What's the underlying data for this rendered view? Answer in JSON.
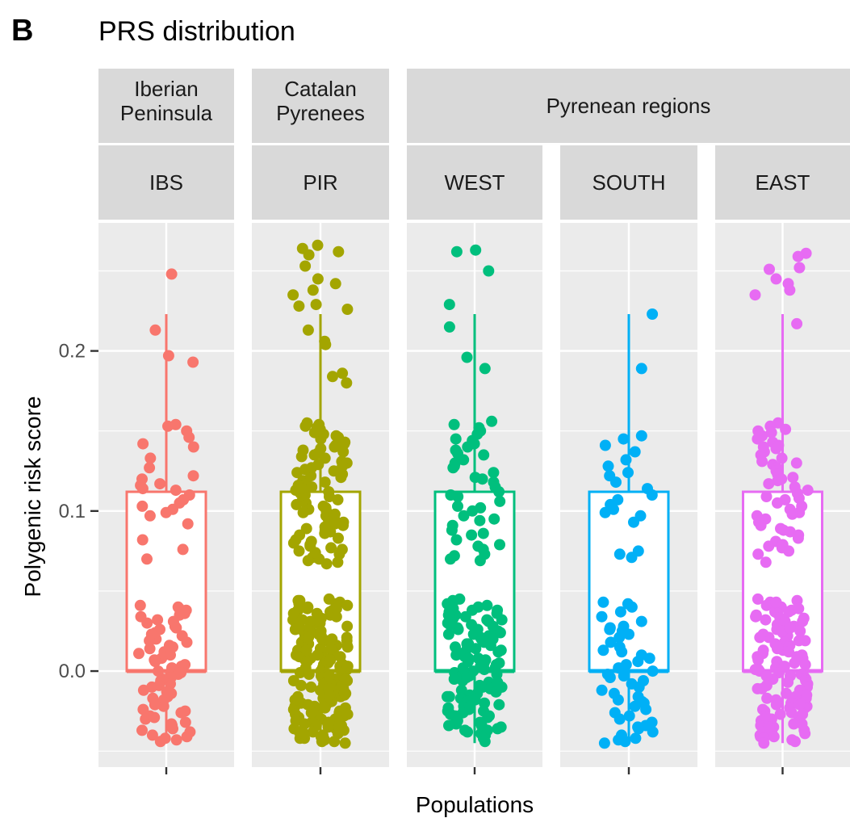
{
  "tag": "B",
  "chart_data": {
    "type": "boxplot-jitter",
    "title": "PRS distribution",
    "xlabel": "Populations",
    "ylabel": "Polygenic risk score",
    "ylim": [
      -0.06,
      0.28
    ],
    "yticks": [
      {
        "value": 0.0,
        "label": "0.0"
      },
      {
        "value": 0.1,
        "label": "0.1"
      },
      {
        "value": 0.2,
        "label": "0.2"
      }
    ],
    "grid": true,
    "groups": [
      {
        "label": "Iberian\nPeninsula",
        "panels": [
          0
        ]
      },
      {
        "label": "Catalan\nPyrenees",
        "panels": [
          1
        ]
      },
      {
        "label": "Pyrenean regions",
        "panels": [
          2,
          3,
          4
        ]
      }
    ],
    "panels": [
      {
        "name": "IBS",
        "color": "#F8766D",
        "box": {
          "q1": 0.0,
          "median": 0.0,
          "q3": 0.112,
          "whisker_low": -0.045,
          "whisker_high": 0.223
        },
        "points": [
          0.248,
          0.213,
          0.197,
          0.193,
          0.154,
          0.153,
          0.15,
          0.146,
          0.142,
          0.14,
          0.133,
          0.127,
          0.122,
          0.12,
          0.117,
          0.116,
          0.114,
          0.113,
          0.11,
          0.107,
          0.105,
          0.103,
          0.101,
          0.099,
          0.097,
          0.092,
          0.082,
          0.076,
          0.07,
          0.041,
          0.04,
          0.039,
          0.038,
          0.037,
          0.036,
          0.035,
          0.034,
          0.032,
          0.03,
          0.028,
          0.026,
          0.024,
          0.022,
          0.02,
          0.018,
          0.016,
          0.014,
          0.012,
          0.01,
          0.008,
          0.006,
          0.004,
          0.002,
          0.0,
          -0.002,
          -0.004,
          -0.006,
          -0.008,
          -0.01,
          -0.012,
          -0.014,
          -0.016,
          -0.018,
          -0.02,
          -0.022,
          -0.024,
          -0.026,
          -0.028,
          -0.03,
          -0.032,
          -0.034,
          -0.036,
          -0.038,
          -0.04,
          -0.042,
          -0.044,
          0.031,
          0.027,
          0.023,
          0.019,
          0.015,
          0.011,
          0.007,
          0.003,
          -0.001,
          -0.005,
          -0.009,
          -0.013,
          -0.017,
          -0.021,
          -0.025,
          -0.029,
          -0.033,
          -0.037,
          -0.041,
          -0.043
        ]
      },
      {
        "name": "PIR",
        "color": "#A3A500",
        "box": {
          "q1": 0.0,
          "median": 0.0,
          "q3": 0.112,
          "whisker_low": -0.045,
          "whisker_high": 0.223
        },
        "points": [
          0.266,
          0.264,
          0.262,
          0.26,
          0.253,
          0.245,
          0.242,
          0.238,
          0.235,
          0.229,
          0.228,
          0.226,
          0.213,
          0.206,
          0.204,
          0.186,
          0.184,
          0.18,
          0.155,
          0.153,
          0.151,
          0.149,
          0.147,
          0.145,
          0.143,
          0.141,
          0.139,
          0.137,
          0.135,
          0.133,
          0.131,
          0.129,
          0.127,
          0.125,
          0.123,
          0.121,
          0.119,
          0.117,
          0.115,
          0.113,
          0.111,
          0.109,
          0.107,
          0.105,
          0.103,
          0.101,
          0.099,
          0.097,
          0.095,
          0.093,
          0.091,
          0.089,
          0.087,
          0.085,
          0.083,
          0.081,
          0.079,
          0.077,
          0.075,
          0.073,
          0.071,
          0.069,
          0.067,
          0.154,
          0.148,
          0.142,
          0.136,
          0.13,
          0.124,
          0.118,
          0.112,
          0.106,
          0.1,
          0.094,
          0.088,
          0.082,
          0.076,
          0.07,
          0.152,
          0.146,
          0.14,
          0.134,
          0.128,
          0.122,
          0.116,
          0.11,
          0.104,
          0.098,
          0.092,
          0.086,
          0.08,
          0.074,
          0.068,
          0.15,
          0.138,
          0.126,
          0.114,
          0.102,
          0.09,
          0.078,
          0.045,
          0.044,
          0.043,
          0.042,
          0.041,
          0.04,
          0.039,
          0.038,
          0.037,
          0.036,
          0.035,
          0.034,
          0.033,
          0.032,
          0.031,
          0.03,
          0.029,
          0.028,
          0.027,
          0.026,
          0.025,
          0.024,
          0.023,
          0.022,
          0.021,
          0.02,
          0.019,
          0.018,
          0.017,
          0.016,
          0.015,
          0.014,
          0.013,
          0.012,
          0.011,
          0.01,
          0.009,
          0.008,
          0.007,
          0.006,
          0.005,
          0.004,
          0.003,
          0.002,
          0.001,
          0.0,
          -0.001,
          -0.002,
          -0.003,
          -0.004,
          -0.005,
          -0.006,
          -0.007,
          -0.008,
          -0.009,
          -0.01,
          -0.011,
          -0.012,
          -0.013,
          -0.014,
          -0.015,
          -0.016,
          -0.017,
          -0.018,
          -0.019,
          -0.02,
          -0.021,
          -0.022,
          -0.023,
          -0.024,
          -0.025,
          -0.026,
          -0.027,
          -0.028,
          -0.029,
          -0.03,
          -0.031,
          -0.032,
          -0.033,
          -0.034,
          -0.035,
          -0.036,
          -0.037,
          -0.038,
          -0.039,
          -0.04,
          -0.041,
          -0.042,
          -0.043,
          -0.044,
          0.044,
          0.04,
          0.036,
          0.032,
          0.028,
          0.024,
          0.02,
          0.016,
          0.012,
          0.008,
          0.004,
          0.0,
          -0.004,
          -0.008,
          -0.012,
          -0.016,
          -0.02,
          -0.024,
          -0.028,
          -0.032,
          -0.036,
          -0.04,
          -0.044,
          0.042,
          0.038,
          0.034,
          0.03,
          0.026,
          0.022,
          0.018,
          0.014,
          0.01,
          0.006,
          0.002,
          -0.002,
          -0.006,
          -0.01,
          -0.014,
          -0.018,
          -0.022,
          -0.026,
          -0.03,
          -0.034,
          -0.038,
          -0.042,
          0.043,
          0.037,
          0.031,
          0.025,
          0.019,
          0.013,
          0.007,
          0.001,
          -0.005,
          -0.011,
          -0.017,
          -0.023,
          -0.029,
          -0.035,
          -0.041,
          0.039,
          0.033,
          0.027,
          0.021,
          0.015,
          0.009,
          0.003,
          -0.003,
          -0.009,
          -0.015,
          -0.021,
          -0.027,
          -0.033,
          -0.039,
          -0.045
        ]
      },
      {
        "name": "WEST",
        "color": "#00BF7D",
        "box": {
          "q1": 0.0,
          "median": 0.0,
          "q3": 0.112,
          "whisker_low": -0.045,
          "whisker_high": 0.223
        },
        "points": [
          0.263,
          0.262,
          0.25,
          0.229,
          0.215,
          0.196,
          0.189,
          0.156,
          0.154,
          0.152,
          0.15,
          0.148,
          0.145,
          0.142,
          0.14,
          0.138,
          0.135,
          0.132,
          0.13,
          0.127,
          0.124,
          0.121,
          0.118,
          0.115,
          0.112,
          0.109,
          0.106,
          0.103,
          0.1,
          0.097,
          0.094,
          0.091,
          0.088,
          0.085,
          0.082,
          0.079,
          0.076,
          0.073,
          0.07,
          0.069,
          0.144,
          0.136,
          0.128,
          0.12,
          0.11,
          0.102,
          0.095,
          0.086,
          0.078,
          0.072,
          0.045,
          0.044,
          0.043,
          0.042,
          0.041,
          0.04,
          0.039,
          0.038,
          0.037,
          0.036,
          0.035,
          0.034,
          0.033,
          0.032,
          0.031,
          0.03,
          0.029,
          0.028,
          0.027,
          0.026,
          0.025,
          0.024,
          0.023,
          0.022,
          0.021,
          0.02,
          0.019,
          0.018,
          0.017,
          0.016,
          0.015,
          0.014,
          0.013,
          0.012,
          0.011,
          0.01,
          0.009,
          0.008,
          0.007,
          0.006,
          0.005,
          0.004,
          0.003,
          0.002,
          0.001,
          0.0,
          -0.001,
          -0.002,
          -0.003,
          -0.004,
          -0.005,
          -0.006,
          -0.007,
          -0.008,
          -0.009,
          -0.01,
          -0.011,
          -0.012,
          -0.013,
          -0.014,
          -0.015,
          -0.016,
          -0.017,
          -0.018,
          -0.019,
          -0.02,
          -0.021,
          -0.022,
          -0.023,
          -0.024,
          -0.025,
          -0.026,
          -0.027,
          -0.028,
          -0.029,
          -0.03,
          -0.031,
          -0.032,
          -0.033,
          -0.034,
          -0.035,
          -0.036,
          -0.037,
          -0.038,
          -0.039,
          -0.04,
          -0.042,
          -0.044,
          0.041,
          0.035,
          0.029,
          0.023,
          0.017,
          0.011,
          0.005,
          -0.001,
          -0.007,
          -0.013,
          -0.019,
          -0.025,
          -0.031,
          -0.037,
          0.038,
          0.032,
          0.026,
          0.02,
          0.014,
          0.008,
          0.002,
          -0.004,
          -0.01,
          -0.016,
          -0.022,
          -0.028,
          -0.034
        ]
      },
      {
        "name": "SOUTH",
        "color": "#00B0F6",
        "box": {
          "q1": 0.0,
          "median": 0.0,
          "q3": 0.112,
          "whisker_low": -0.045,
          "whisker_high": 0.223
        },
        "points": [
          0.223,
          0.189,
          0.147,
          0.145,
          0.141,
          0.137,
          0.132,
          0.128,
          0.124,
          0.122,
          0.118,
          0.114,
          0.11,
          0.107,
          0.104,
          0.101,
          0.099,
          0.097,
          0.093,
          0.075,
          0.073,
          0.071,
          0.043,
          0.042,
          0.04,
          0.037,
          0.034,
          0.031,
          0.028,
          0.026,
          0.025,
          0.023,
          0.021,
          0.018,
          0.015,
          0.012,
          0.01,
          0.008,
          0.006,
          0.004,
          0.002,
          0.0,
          -0.002,
          -0.004,
          -0.006,
          -0.008,
          -0.01,
          -0.012,
          -0.014,
          -0.016,
          -0.018,
          -0.02,
          -0.022,
          -0.024,
          -0.026,
          -0.028,
          -0.03,
          -0.032,
          -0.034,
          -0.036,
          -0.038,
          -0.04,
          -0.042,
          -0.044,
          -0.045,
          0.027,
          0.013,
          -0.003,
          -0.019,
          -0.035,
          -0.043
        ]
      },
      {
        "name": "EAST",
        "color": "#E76BF3",
        "box": {
          "q1": 0.0,
          "median": 0.0,
          "q3": 0.112,
          "whisker_low": -0.045,
          "whisker_high": 0.223
        },
        "points": [
          0.261,
          0.259,
          0.252,
          0.251,
          0.245,
          0.242,
          0.238,
          0.235,
          0.217,
          0.155,
          0.153,
          0.151,
          0.149,
          0.147,
          0.145,
          0.143,
          0.141,
          0.139,
          0.137,
          0.135,
          0.133,
          0.131,
          0.129,
          0.127,
          0.125,
          0.123,
          0.121,
          0.119,
          0.117,
          0.115,
          0.113,
          0.111,
          0.109,
          0.107,
          0.105,
          0.103,
          0.101,
          0.099,
          0.097,
          0.095,
          0.093,
          0.091,
          0.089,
          0.087,
          0.085,
          0.083,
          0.081,
          0.079,
          0.077,
          0.075,
          0.073,
          0.068,
          0.15,
          0.14,
          0.13,
          0.12,
          0.108,
          0.098,
          0.088,
          0.078,
          0.045,
          0.044,
          0.043,
          0.042,
          0.041,
          0.04,
          0.039,
          0.038,
          0.037,
          0.036,
          0.035,
          0.034,
          0.033,
          0.032,
          0.031,
          0.03,
          0.029,
          0.028,
          0.027,
          0.026,
          0.025,
          0.024,
          0.023,
          0.022,
          0.021,
          0.02,
          0.019,
          0.018,
          0.017,
          0.016,
          0.015,
          0.014,
          0.013,
          0.012,
          0.011,
          0.01,
          0.009,
          0.008,
          0.007,
          0.006,
          0.005,
          0.004,
          0.003,
          0.002,
          0.001,
          0.0,
          -0.001,
          -0.002,
          -0.003,
          -0.004,
          -0.005,
          -0.006,
          -0.007,
          -0.008,
          -0.009,
          -0.01,
          -0.011,
          -0.012,
          -0.013,
          -0.014,
          -0.015,
          -0.016,
          -0.017,
          -0.018,
          -0.019,
          -0.02,
          -0.021,
          -0.022,
          -0.023,
          -0.024,
          -0.025,
          -0.026,
          -0.027,
          -0.028,
          -0.029,
          -0.03,
          -0.031,
          -0.032,
          -0.033,
          -0.034,
          -0.035,
          -0.036,
          -0.037,
          -0.038,
          -0.039,
          -0.04,
          -0.041,
          -0.042,
          -0.043,
          -0.044,
          0.043,
          0.037,
          0.031,
          0.025,
          0.019,
          0.013,
          0.007,
          0.001,
          -0.005,
          -0.011,
          -0.017,
          -0.023,
          -0.029,
          -0.035,
          -0.041,
          0.039,
          0.033,
          0.027,
          0.021,
          0.015,
          0.009,
          0.003,
          -0.003,
          -0.009,
          -0.015,
          -0.021,
          -0.027,
          -0.033,
          -0.039,
          -0.045
        ]
      }
    ]
  }
}
